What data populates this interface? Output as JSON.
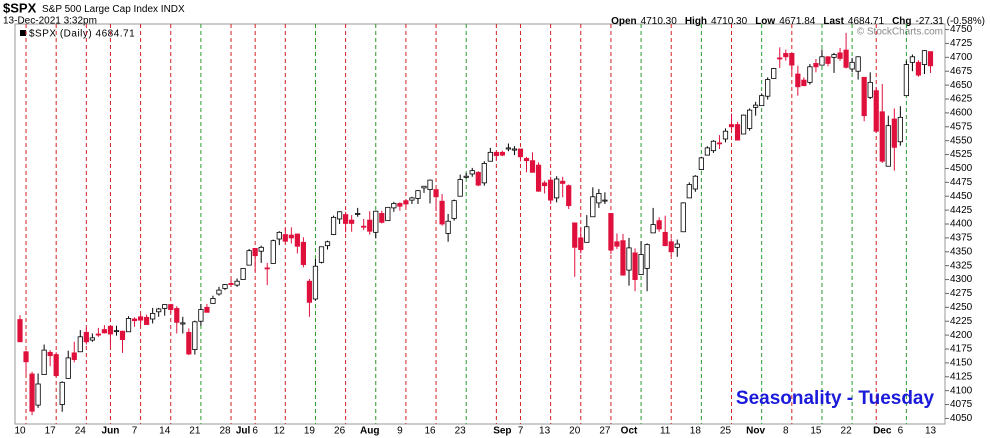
{
  "chart_data": {
    "type": "candlestick",
    "title": "$SPX",
    "subtitle": "S&P 500 Large Cap Index",
    "exchange": "INDX",
    "timestamp": "13-Dec-2021 3:32pm",
    "quote": [
      {
        "label": "Open",
        "value": "4710.30"
      },
      {
        "label": "High",
        "value": "4710.30"
      },
      {
        "label": "Low",
        "value": "4671.84"
      },
      {
        "label": "Last",
        "value": "4684.71"
      },
      {
        "label": "Chg",
        "value": "-27.31 (-0.58%)"
      }
    ],
    "copyright": "© StockCharts.com",
    "legend": "$SPX (Daily) 4684.71",
    "annotation": "Seasonality - Tuesday",
    "up_color": "#ffffff",
    "down_color": "#e0103c",
    "annotation_color": "#1a1adb",
    "ylim": [
      4040,
      4760
    ],
    "yticks": [
      4050,
      4075,
      4100,
      4125,
      4150,
      4175,
      4200,
      4225,
      4250,
      4275,
      4300,
      4325,
      4350,
      4375,
      4400,
      4425,
      4450,
      4475,
      4500,
      4525,
      4550,
      4575,
      4600,
      4625,
      4650,
      4675,
      4700,
      4725,
      4750
    ],
    "categories": [
      "10",
      null,
      null,
      null,
      null,
      "17",
      null,
      null,
      null,
      null,
      "24",
      null,
      null,
      null,
      null,
      "Jun",
      null,
      null,
      null,
      "7",
      null,
      null,
      null,
      null,
      "14",
      null,
      null,
      null,
      null,
      "21",
      null,
      null,
      null,
      null,
      "28",
      null,
      null,
      "Jul",
      null,
      "6",
      null,
      null,
      null,
      "12",
      null,
      null,
      null,
      null,
      "19",
      null,
      null,
      null,
      null,
      "26",
      null,
      null,
      null,
      null,
      "Aug",
      null,
      null,
      null,
      null,
      "9",
      null,
      null,
      null,
      null,
      "16",
      null,
      null,
      null,
      null,
      "23",
      null,
      null,
      null,
      null,
      null,
      null,
      "Sep",
      null,
      null,
      "7",
      null,
      null,
      null,
      "13",
      null,
      null,
      null,
      null,
      "20",
      null,
      null,
      null,
      null,
      "27",
      null,
      null,
      null,
      "Oct",
      null,
      null,
      null,
      null,
      null,
      "11",
      null,
      null,
      null,
      null,
      "18",
      null,
      null,
      null,
      null,
      "25",
      null,
      null,
      null,
      null,
      "Nov",
      null,
      null,
      null,
      null,
      "8",
      null,
      null,
      null,
      null,
      "15",
      null,
      null,
      null,
      null,
      "22",
      null,
      null,
      null,
      null,
      null,
      "Dec",
      null,
      null,
      "6",
      null,
      null,
      null,
      null,
      "13"
    ],
    "candles": [
      [
        4228,
        4236,
        4188,
        4188
      ],
      [
        4170,
        4172,
        4130,
        4152
      ],
      [
        4130,
        4134,
        4056,
        4063
      ],
      [
        4074,
        4131,
        4069,
        4112
      ],
      [
        4129,
        4183,
        4129,
        4173
      ],
      [
        4169,
        4173,
        4144,
        4163
      ],
      [
        4165,
        4169,
        4124,
        4127
      ],
      [
        4075,
        4117,
        4062,
        4115
      ],
      [
        4122,
        4172,
        4122,
        4159
      ],
      [
        4168,
        4188,
        4151,
        4156
      ],
      [
        4170,
        4209,
        4170,
        4197
      ],
      [
        4205,
        4213,
        4183,
        4188
      ],
      [
        4191,
        4203,
        4188,
        4195
      ],
      [
        4202,
        4213,
        4197,
        4200
      ],
      [
        4210,
        4218,
        4203,
        4204
      ],
      [
        4216,
        4217,
        4180,
        4202
      ],
      [
        4207,
        4217,
        4199,
        4208
      ],
      [
        4207,
        4208,
        4168,
        4192
      ],
      [
        4206,
        4234,
        4206,
        4230
      ],
      [
        4229,
        4232,
        4215,
        4226
      ],
      [
        4233,
        4237,
        4218,
        4227
      ],
      [
        4232,
        4237,
        4219,
        4219
      ],
      [
        4229,
        4249,
        4221,
        4239
      ],
      [
        4242,
        4249,
        4233,
        4247
      ],
      [
        4248,
        4255,
        4235,
        4255
      ],
      [
        4255,
        4256,
        4240,
        4246
      ],
      [
        4248,
        4252,
        4203,
        4223
      ],
      [
        4220,
        4233,
        4203,
        4222
      ],
      [
        4205,
        4212,
        4164,
        4166
      ],
      [
        4174,
        4226,
        4165,
        4224
      ],
      [
        4225,
        4256,
        4217,
        4246
      ],
      [
        4250,
        4256,
        4241,
        4241
      ],
      [
        4257,
        4271,
        4257,
        4266
      ],
      [
        4274,
        4287,
        4271,
        4281
      ],
      [
        4284,
        4292,
        4281,
        4291
      ],
      [
        4293,
        4300,
        4287,
        4291
      ],
      [
        4290,
        4302,
        4287,
        4297
      ],
      [
        4300,
        4320,
        4300,
        4320
      ],
      [
        4326,
        4355,
        4326,
        4352
      ],
      [
        4356,
        4357,
        4314,
        4343
      ],
      [
        4351,
        4361,
        4330,
        4358
      ],
      [
        4321,
        4330,
        4290,
        4320
      ],
      [
        4329,
        4372,
        4329,
        4370
      ],
      [
        4373,
        4387,
        4362,
        4385
      ],
      [
        4381,
        4393,
        4368,
        4369
      ],
      [
        4380,
        4394,
        4365,
        4375
      ],
      [
        4382,
        4382,
        4347,
        4360
      ],
      [
        4367,
        4376,
        4322,
        4327
      ],
      [
        4297,
        4301,
        4233,
        4259
      ],
      [
        4265,
        4337,
        4262,
        4324
      ],
      [
        4331,
        4359,
        4329,
        4359
      ],
      [
        4361,
        4370,
        4354,
        4368
      ],
      [
        4381,
        4415,
        4380,
        4412
      ],
      [
        4409,
        4423,
        4400,
        4422
      ],
      [
        4417,
        4422,
        4385,
        4401
      ],
      [
        4407,
        4416,
        4386,
        4401
      ],
      [
        4419,
        4429,
        4413,
        4419
      ],
      [
        4396,
        4409,
        4389,
        4395
      ],
      [
        4407,
        4423,
        4381,
        4387
      ],
      [
        4385,
        4424,
        4374,
        4423
      ],
      [
        4419,
        4424,
        4401,
        4403
      ],
      [
        4406,
        4430,
        4406,
        4430
      ],
      [
        4429,
        4440,
        4422,
        4437
      ],
      [
        4437,
        4439,
        4424,
        4432
      ],
      [
        4442,
        4445,
        4430,
        4436
      ],
      [
        4443,
        4449,
        4436,
        4447
      ],
      [
        4446,
        4461,
        4436,
        4460
      ],
      [
        4465,
        4468,
        4456,
        4468
      ],
      [
        4462,
        4480,
        4437,
        4479
      ],
      [
        4462,
        4462,
        4423,
        4449
      ],
      [
        4441,
        4454,
        4397,
        4400
      ],
      [
        4383,
        4418,
        4368,
        4405
      ],
      [
        4410,
        4444,
        4406,
        4442
      ],
      [
        4450,
        4489,
        4450,
        4480
      ],
      [
        4484,
        4492,
        4482,
        4486
      ],
      [
        4490,
        4501,
        4485,
        4496
      ],
      [
        4493,
        4495,
        4468,
        4470
      ],
      [
        4474,
        4513,
        4469,
        4509
      ],
      [
        4513,
        4537,
        4513,
        4529
      ],
      [
        4529,
        4531,
        4515,
        4523
      ],
      [
        4529,
        4532,
        4522,
        4524
      ],
      [
        4535,
        4545,
        4531,
        4537
      ],
      [
        4533,
        4540,
        4524,
        4535
      ],
      [
        4535,
        4535,
        4513,
        4521
      ],
      [
        4518,
        4521,
        4493,
        4514
      ],
      [
        4514,
        4529,
        4493,
        4493
      ],
      [
        4506,
        4511,
        4458,
        4459
      ],
      [
        4474,
        4478,
        4455,
        4469
      ],
      [
        4479,
        4485,
        4436,
        4443
      ],
      [
        4447,
        4486,
        4439,
        4481
      ],
      [
        4477,
        4485,
        4448,
        4473
      ],
      [
        4469,
        4471,
        4427,
        4433
      ],
      [
        4402,
        4402,
        4305,
        4358
      ],
      [
        4375,
        4394,
        4347,
        4354
      ],
      [
        4367,
        4416,
        4367,
        4395
      ],
      [
        4413,
        4466,
        4413,
        4449
      ],
      [
        4438,
        4463,
        4429,
        4455
      ],
      [
        4442,
        4457,
        4436,
        4443
      ],
      [
        4419,
        4419,
        4346,
        4353
      ],
      [
        4368,
        4383,
        4355,
        4360
      ],
      [
        4370,
        4382,
        4307,
        4308
      ],
      [
        4317,
        4375,
        4289,
        4357
      ],
      [
        4348,
        4356,
        4279,
        4300
      ],
      [
        4309,
        4369,
        4309,
        4345
      ],
      [
        4320,
        4365,
        4279,
        4363
      ],
      [
        4384,
        4429,
        4384,
        4399
      ],
      [
        4406,
        4412,
        4386,
        4391
      ],
      [
        4385,
        4415,
        4360,
        4361
      ],
      [
        4368,
        4374,
        4342,
        4350
      ],
      [
        4358,
        4372,
        4341,
        4364
      ],
      [
        4386,
        4439,
        4386,
        4438
      ],
      [
        4447,
        4475,
        4447,
        4471
      ],
      [
        4463,
        4488,
        4458,
        4486
      ],
      [
        4498,
        4521,
        4497,
        4519
      ],
      [
        4524,
        4540,
        4524,
        4537
      ],
      [
        4532,
        4551,
        4528,
        4549
      ],
      [
        4546,
        4560,
        4535,
        4545
      ],
      [
        4553,
        4572,
        4547,
        4567
      ],
      [
        4579,
        4599,
        4570,
        4575
      ],
      [
        4579,
        4584,
        4551,
        4551
      ],
      [
        4562,
        4597,
        4562,
        4596
      ],
      [
        4572,
        4608,
        4568,
        4605
      ],
      [
        4610,
        4620,
        4595,
        4614
      ],
      [
        4613,
        4635,
        4613,
        4631
      ],
      [
        4630,
        4664,
        4624,
        4660
      ],
      [
        4662,
        4681,
        4662,
        4680
      ],
      [
        4699,
        4718,
        4681,
        4697
      ],
      [
        4707,
        4714,
        4694,
        4701
      ],
      [
        4707,
        4708,
        4670,
        4686
      ],
      [
        4670,
        4685,
        4631,
        4647
      ],
      [
        4659,
        4664,
        4648,
        4649
      ],
      [
        4655,
        4688,
        4651,
        4683
      ],
      [
        4689,
        4697,
        4673,
        4683
      ],
      [
        4686,
        4714,
        4686,
        4701
      ],
      [
        4701,
        4702,
        4684,
        4689
      ],
      [
        4700,
        4708,
        4672,
        4705
      ],
      [
        4708,
        4717,
        4694,
        4698
      ],
      [
        4713,
        4744,
        4680,
        4682
      ],
      [
        4679,
        4699,
        4673,
        4691
      ],
      [
        4675,
        4702,
        4660,
        4701
      ],
      [
        4664,
        4664,
        4585,
        4595
      ],
      [
        4628,
        4673,
        4625,
        4655
      ],
      [
        4640,
        4646,
        4564,
        4567
      ],
      [
        4602,
        4652,
        4510,
        4513
      ],
      [
        4504,
        4595,
        4504,
        4577
      ],
      [
        4589,
        4608,
        4496,
        4538
      ],
      [
        4548,
        4612,
        4541,
        4592
      ],
      [
        4631,
        4694,
        4631,
        4687
      ],
      [
        4691,
        4705,
        4675,
        4701
      ],
      [
        4691,
        4695,
        4665,
        4668
      ],
      [
        4687,
        4713,
        4670,
        4712
      ],
      [
        4710.3,
        4710.3,
        4671.84,
        4684.71
      ]
    ]
  }
}
